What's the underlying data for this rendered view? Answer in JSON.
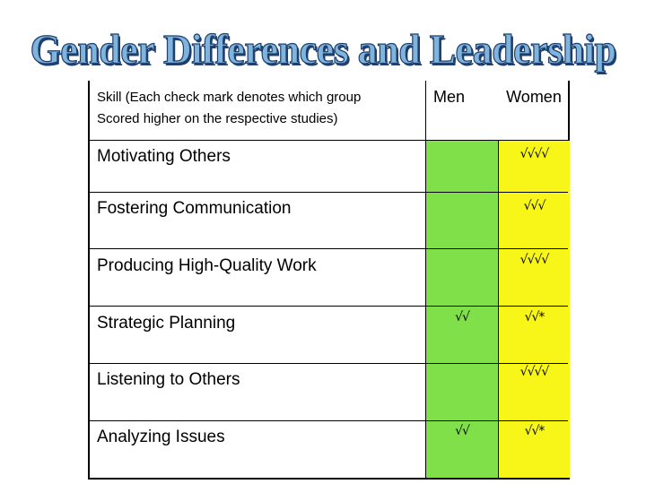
{
  "title": "Gender Differences and Leadership",
  "header": {
    "skill_line1": "Skill (Each check mark denotes which group",
    "skill_line2": "Scored higher on the respective studies)",
    "men": "Men",
    "women": "Women"
  },
  "rows": [
    {
      "skill": "Motivating Others",
      "men": "",
      "women": "√√√√"
    },
    {
      "skill": "Fostering Communication",
      "men": "",
      "women": "√√√"
    },
    {
      "skill": "Producing High-Quality Work",
      "men": "",
      "women": "√√√√"
    },
    {
      "skill": "Strategic Planning",
      "men": "√√",
      "women": "√√*"
    },
    {
      "skill": "Listening to Others",
      "men": "",
      "women": "√√√√"
    },
    {
      "skill": "Analyzing Issues",
      "men": "√√",
      "women": "√√*"
    }
  ],
  "colors": {
    "men_column": "#80e04a",
    "women_column": "#f8f518",
    "title_fill": "#7fb4dc",
    "title_outline": "#1f3f6e"
  }
}
